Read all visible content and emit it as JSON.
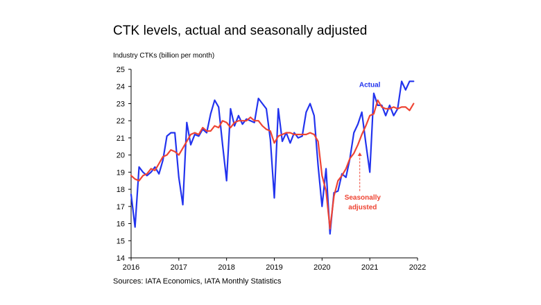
{
  "title": "CTK levels, actual and seasonally adjusted",
  "ylabel": "Industry CTKs (billion per month)",
  "source": "Sources: IATA Economics, IATA Monthly Statistics",
  "colors": {
    "actual": "#2233ee",
    "seasonally_adjusted": "#ee4433",
    "axis": "#000000"
  },
  "chart_data": {
    "type": "line",
    "title": "CTK levels, actual and seasonally adjusted",
    "ylabel": "Industry CTKs (billion per month)",
    "xlabel": "",
    "xlim": [
      2016,
      2022
    ],
    "ylim": [
      14,
      25
    ],
    "x_ticks": [
      "2016",
      "2017",
      "2018",
      "2019",
      "2020",
      "2021",
      "2022"
    ],
    "y_ticks": [
      "14",
      "15",
      "16",
      "17",
      "18",
      "19",
      "20",
      "21",
      "22",
      "23",
      "24",
      "25"
    ],
    "grid": false,
    "x_start": "2016-01",
    "x_step_months": 1,
    "series": [
      {
        "name": "Actual",
        "color": "#2233ee",
        "values": [
          17.7,
          15.8,
          19.3,
          19.0,
          18.8,
          19.0,
          19.3,
          18.9,
          19.7,
          21.1,
          21.3,
          21.3,
          18.7,
          17.1,
          21.9,
          20.6,
          21.2,
          21.1,
          21.5,
          21.3,
          22.4,
          23.2,
          22.8,
          20.6,
          18.5,
          22.7,
          21.7,
          22.3,
          21.8,
          22.1,
          22.0,
          21.9,
          23.3,
          23.0,
          22.7,
          20.9,
          17.5,
          22.7,
          20.8,
          21.3,
          20.7,
          21.3,
          21.0,
          21.1,
          22.5,
          23.0,
          22.3,
          19.4,
          17.0,
          19.2,
          15.4,
          17.8,
          17.9,
          18.9,
          18.7,
          19.8,
          21.3,
          21.8,
          22.5,
          20.7,
          19.0,
          23.6,
          22.9,
          22.9,
          22.3,
          22.9,
          22.3,
          22.7,
          24.3,
          23.8,
          24.3,
          24.3
        ]
      },
      {
        "name": "Seasonally adjusted",
        "color": "#ee4433",
        "values": [
          18.8,
          18.6,
          18.5,
          18.8,
          18.9,
          19.2,
          19.1,
          19.5,
          19.9,
          20.0,
          20.3,
          20.2,
          20.0,
          20.4,
          20.8,
          21.2,
          21.3,
          21.2,
          21.6,
          21.4,
          21.4,
          21.7,
          21.6,
          22.0,
          21.9,
          21.6,
          21.9,
          22.0,
          22.0,
          22.0,
          22.2,
          22.0,
          22.0,
          21.7,
          21.5,
          21.4,
          20.7,
          21.1,
          21.2,
          21.3,
          21.3,
          21.2,
          21.2,
          21.2,
          21.2,
          21.3,
          21.2,
          20.8,
          18.8,
          17.9,
          15.7,
          17.6,
          18.5,
          18.8,
          19.2,
          19.8,
          20.1,
          20.6,
          21.2,
          21.7,
          22.3,
          22.4,
          23.2,
          22.8,
          22.7,
          22.7,
          22.8,
          22.7,
          22.8,
          22.8,
          22.6,
          23.0
        ]
      }
    ],
    "annotations": [
      {
        "text": "Actual",
        "series": "Actual"
      },
      {
        "text": [
          "Seasonally",
          "adjusted"
        ],
        "series": "Seasonally adjusted"
      }
    ]
  }
}
